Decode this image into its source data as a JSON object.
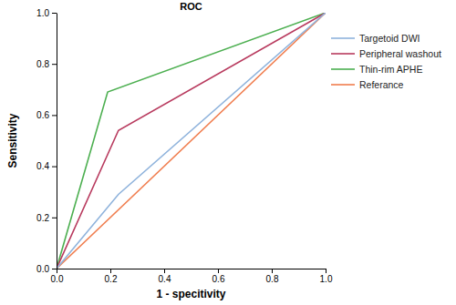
{
  "chart_data": {
    "type": "line",
    "title": "ROC",
    "x_label": "1 - specitivity",
    "y_label": "Sensitivity",
    "xlim": [
      0,
      1
    ],
    "ylim": [
      0,
      1
    ],
    "xticks": [
      {
        "value": 0,
        "label": "0.0"
      },
      0.2,
      0.4,
      0.6,
      0.8,
      {
        "value": 1,
        "label": "1.0"
      }
    ],
    "yticks": [
      {
        "value": 0,
        "label": "0.0"
      },
      0.2,
      0.4,
      0.6,
      0.8,
      {
        "value": 1,
        "label": "1.0"
      }
    ],
    "legend": "right",
    "grid": false,
    "series": [
      {
        "name": "Targetoid DWI",
        "color": "#8fb3dc",
        "x": [
          0,
          0.23,
          1
        ],
        "values": [
          0,
          0.29,
          1
        ]
      },
      {
        "name": "Peripheral washout",
        "color": "#b83a5e",
        "x": [
          0,
          0.23,
          1
        ],
        "values": [
          0,
          0.54,
          1
        ]
      },
      {
        "name": "Thin-rim APHE",
        "color": "#4caf50",
        "x": [
          0,
          0.19,
          1
        ],
        "values": [
          0,
          0.69,
          1
        ]
      },
      {
        "name": "Referance",
        "color": "#f07d4e",
        "x": [
          0,
          1
        ],
        "values": [
          0,
          1
        ]
      }
    ]
  }
}
